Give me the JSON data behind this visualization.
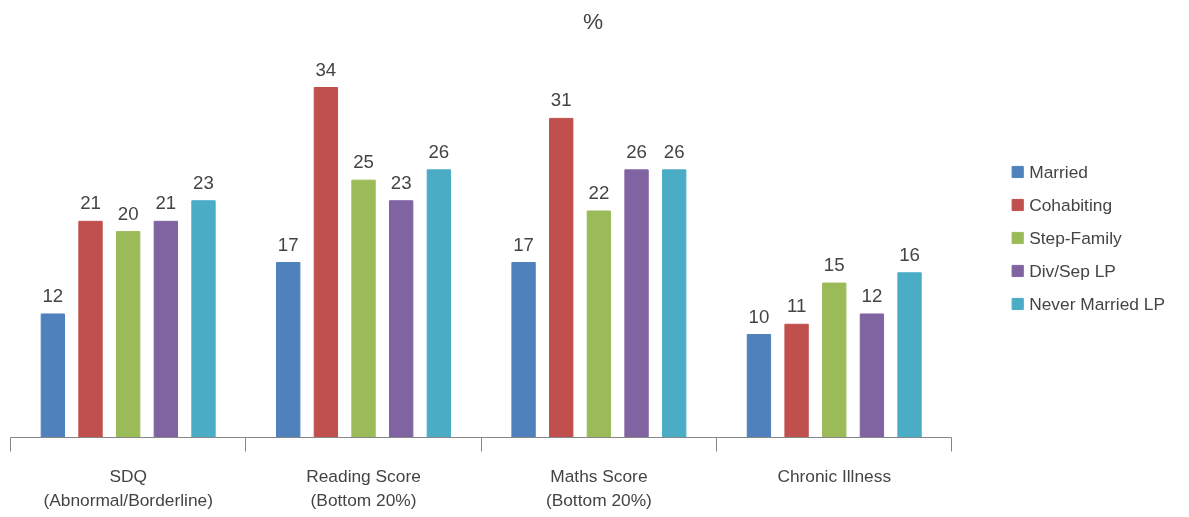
{
  "chart_data": {
    "type": "bar",
    "title": "%",
    "categories": [
      "SDQ\n(Abnormal/Borderline)",
      "Reading Score\n(Bottom 20%)",
      "Maths Score\n(Bottom 20%)",
      "Chronic Illness"
    ],
    "series": [
      {
        "name": "Married",
        "color": "#4f81bd",
        "values": [
          12,
          17,
          17,
          10
        ]
      },
      {
        "name": "Cohabiting",
        "color": "#c0504d",
        "values": [
          21,
          34,
          31,
          11
        ]
      },
      {
        "name": "Step-Family",
        "color": "#9bbb59",
        "values": [
          20,
          25,
          22,
          15
        ]
      },
      {
        "name": "Div/Sep LP",
        "color": "#8064a2",
        "values": [
          21,
          23,
          26,
          12
        ]
      },
      {
        "name": "Never Married LP",
        "color": "#4bacc6",
        "values": [
          23,
          26,
          26,
          16
        ]
      }
    ],
    "data_labels": true,
    "grid": false,
    "legend": "right"
  }
}
